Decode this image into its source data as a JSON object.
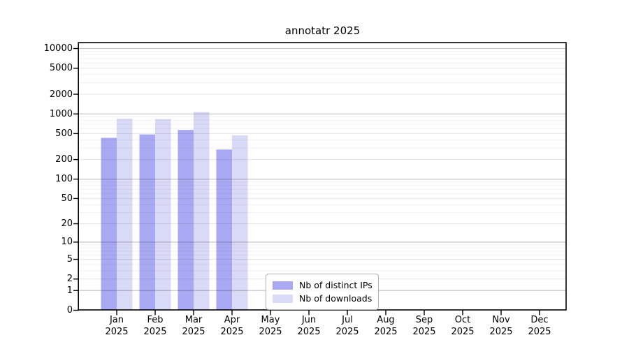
{
  "chart_data": {
    "type": "bar",
    "title": "annotatr 2025",
    "year_label": "2025",
    "categories": [
      "Jan",
      "Feb",
      "Mar",
      "Apr",
      "May",
      "Jun",
      "Jul",
      "Aug",
      "Sep",
      "Oct",
      "Nov",
      "Dec"
    ],
    "series": [
      {
        "name": "Nb of distinct IPs",
        "color": "#a9a9f3",
        "values": [
          430,
          485,
          570,
          285,
          0,
          0,
          0,
          0,
          0,
          0,
          0,
          0
        ]
      },
      {
        "name": "Nb of downloads",
        "color": "#d9d9f8",
        "values": [
          845,
          835,
          1070,
          470,
          0,
          0,
          0,
          0,
          0,
          0,
          0,
          0
        ]
      }
    ],
    "y_axis": {
      "scale": "log10(1+x)",
      "tick_values": [
        0,
        1,
        2,
        5,
        10,
        20,
        50,
        100,
        200,
        500,
        1000,
        2000,
        5000,
        10000
      ],
      "tick_labels": [
        "0",
        "1",
        "2",
        "5",
        "10",
        "20",
        "50",
        "100",
        "200",
        "500",
        "1000",
        "2000",
        "5000",
        "10000"
      ],
      "ylim": [
        0,
        12500
      ]
    },
    "legend": {
      "entries": [
        "Nb of distinct IPs",
        "Nb of downloads"
      ]
    },
    "grid": {
      "power10_line_alpha": 0.22,
      "labeled_line_alpha": 0.1,
      "minor_line_alpha": 0.055,
      "minor_multiples": [
        3,
        4,
        6,
        7,
        8,
        9
      ]
    }
  }
}
